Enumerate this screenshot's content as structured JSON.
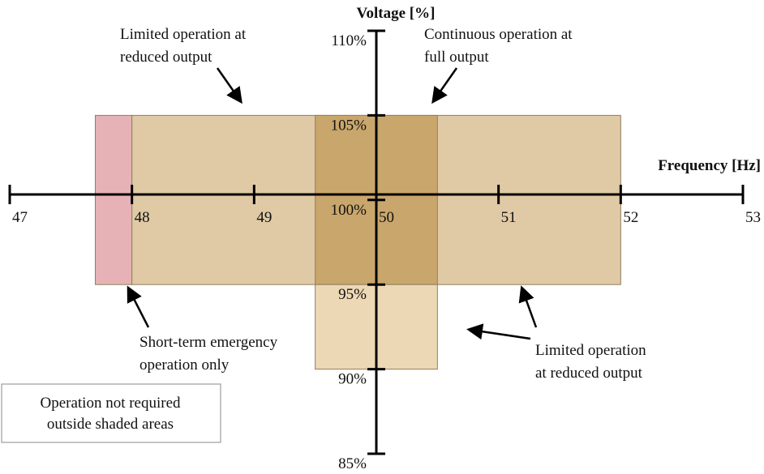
{
  "chart_data": {
    "type": "region",
    "x_label": "Frequency [Hz]",
    "y_label": "Voltage [%]",
    "xlim": [
      47,
      53
    ],
    "xticks": [
      47,
      48,
      49,
      50,
      51,
      52,
      53
    ],
    "ylim": [
      85,
      110
    ],
    "yticks": [
      {
        "value": 85,
        "label": "85%"
      },
      {
        "value": 90,
        "label": "90%"
      },
      {
        "value": 95,
        "label": "95%"
      },
      {
        "value": 100,
        "label": "100%"
      },
      {
        "value": 105,
        "label": "105%"
      },
      {
        "value": 110,
        "label": "110%"
      }
    ],
    "regions": [
      {
        "x": [
          47.7,
          48
        ],
        "y": [
          95,
          105
        ],
        "color": "#e6b2b5"
      },
      {
        "x": [
          48,
          52
        ],
        "y": [
          95,
          105
        ],
        "color": "#e0caa6"
      },
      {
        "x": [
          49.5,
          50.5
        ],
        "y": [
          95,
          105
        ],
        "color": "#c9a66c"
      },
      {
        "x": [
          49.5,
          50.5
        ],
        "y": [
          90,
          95
        ],
        "color": "#ecd8b4"
      }
    ],
    "annotations": [
      {
        "lines": [
          "Limited operation at",
          "reduced output"
        ]
      },
      {
        "lines": [
          "Continuous operation at",
          "full output"
        ]
      },
      {
        "lines": [
          "Short-term emergency",
          "operation only"
        ]
      },
      {
        "lines": [
          "Limited operation",
          "at reduced output"
        ]
      }
    ],
    "note": [
      "Operation not required",
      "outside shaded areas"
    ]
  }
}
